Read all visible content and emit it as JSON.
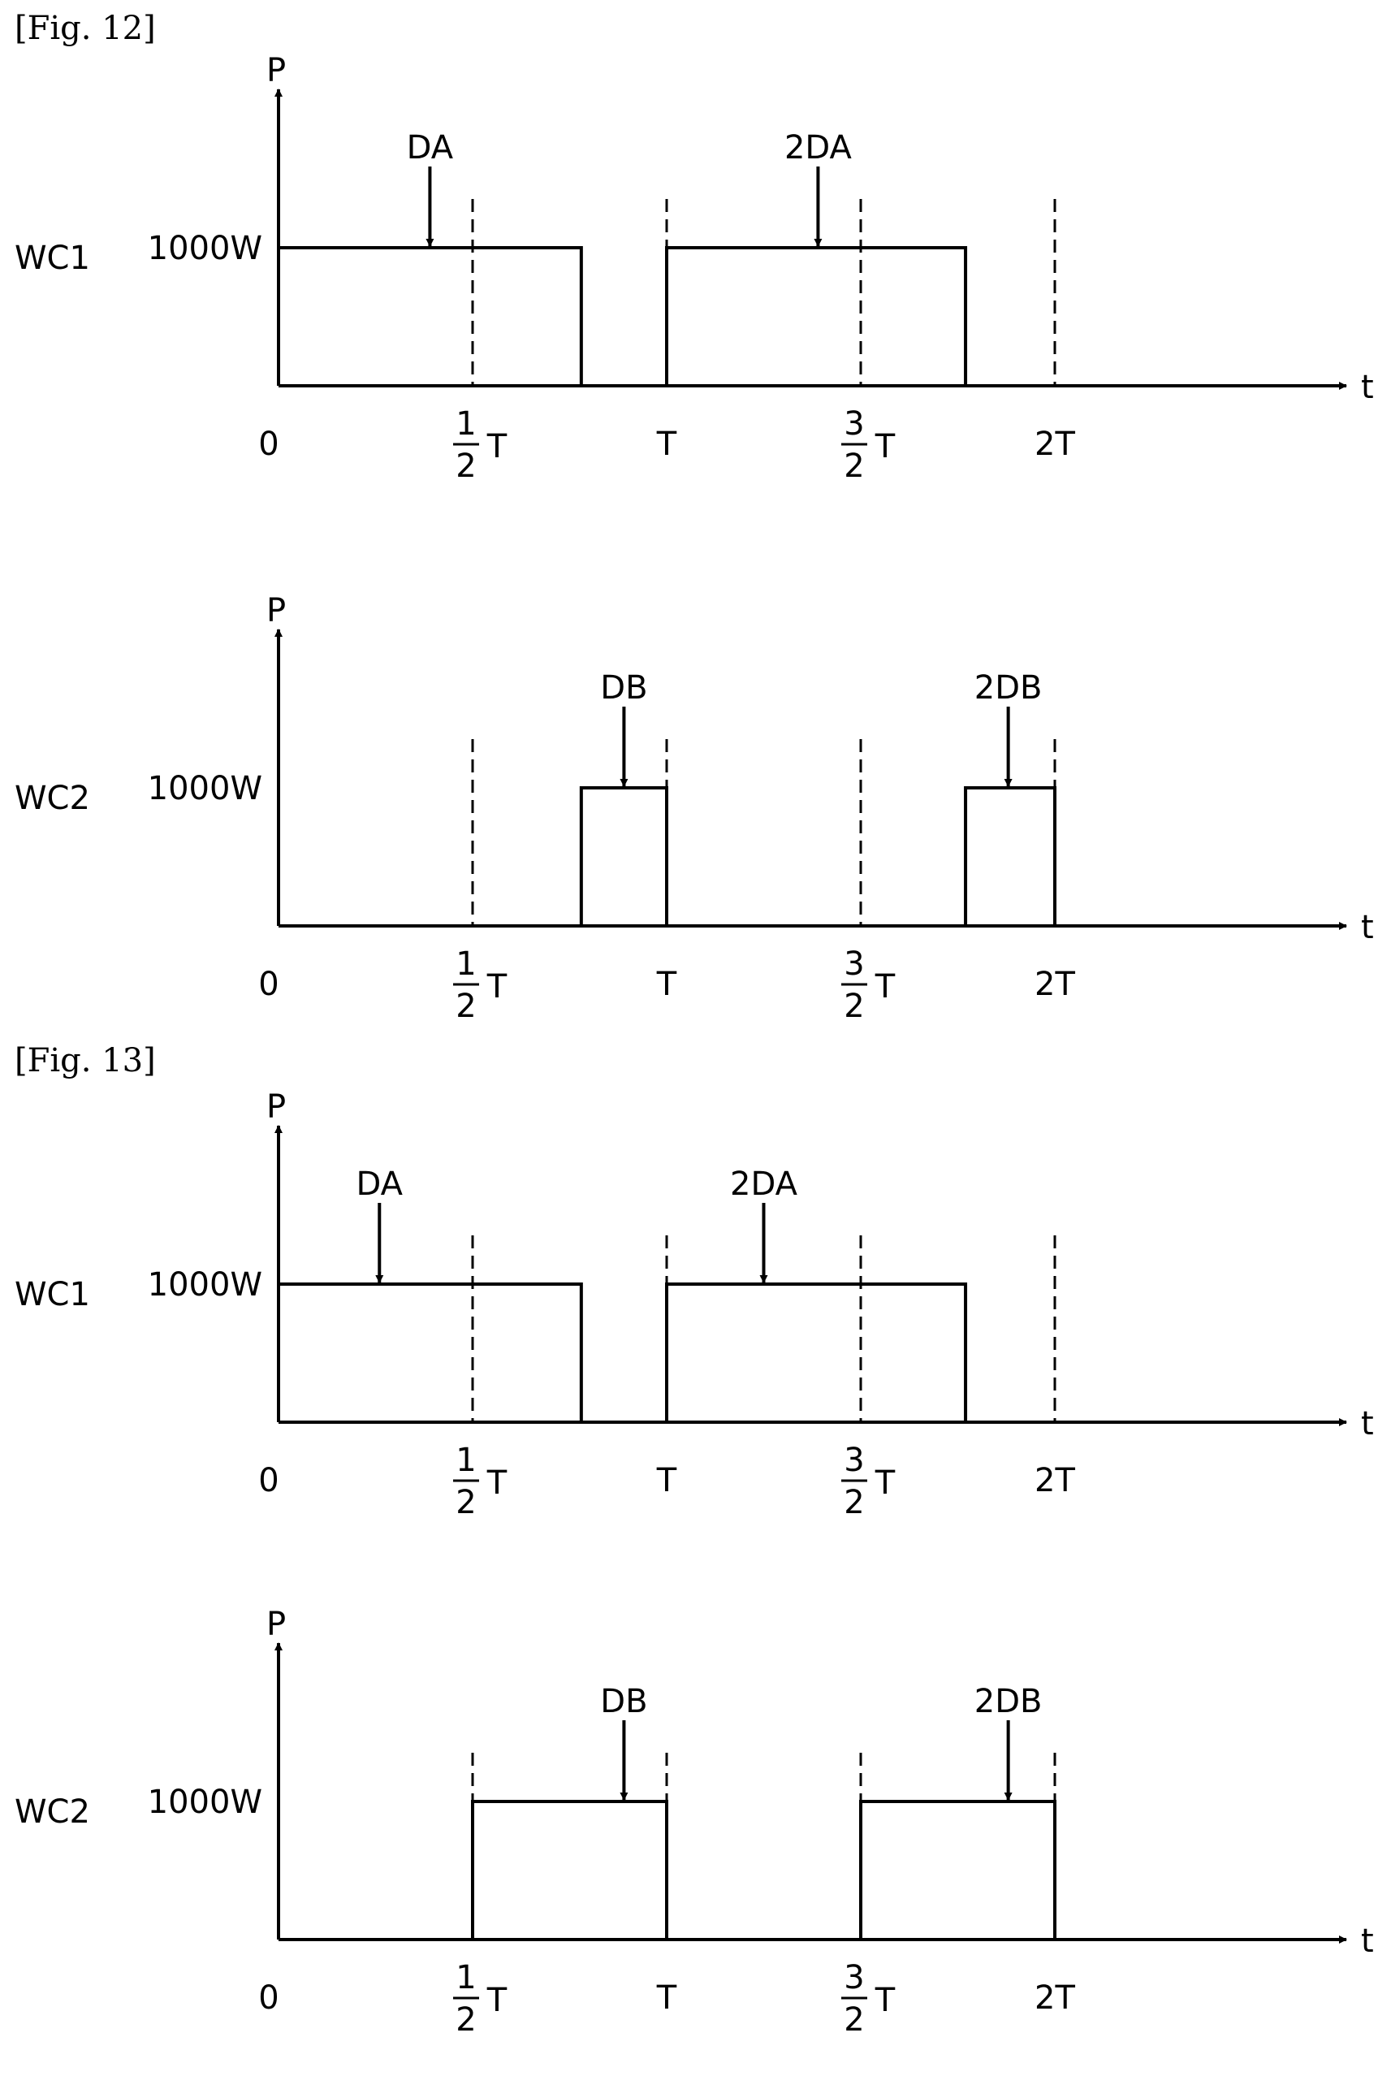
{
  "figures": [
    {
      "label": "[Fig. 12]",
      "charts": [
        {
          "type": "line",
          "row_label": "WC1",
          "ylabel": "P",
          "xlabel": "t",
          "level_label": "1000W",
          "level": 1000,
          "x_ticks": [
            {
              "value": 0,
              "label": "0"
            },
            {
              "value": 0.5,
              "num": "1",
              "den": "2",
              "suffix": "T"
            },
            {
              "value": 1,
              "label": "T"
            },
            {
              "value": 1.5,
              "num": "3",
              "den": "2",
              "suffix": "T"
            },
            {
              "value": 2,
              "label": "2T"
            }
          ],
          "pulses": [
            [
              0,
              0.78
            ],
            [
              1,
              1.77
            ]
          ],
          "markers": [
            {
              "label": "DA",
              "x": 0.39
            },
            {
              "label": "2DA",
              "x": 1.39
            }
          ],
          "dashed_x": [
            0.5,
            1,
            1.5,
            2
          ]
        },
        {
          "type": "line",
          "row_label": "WC2",
          "ylabel": "P",
          "xlabel": "t",
          "level_label": "1000W",
          "level": 1000,
          "x_ticks": [
            {
              "value": 0,
              "label": "0"
            },
            {
              "value": 0.5,
              "num": "1",
              "den": "2",
              "suffix": "T"
            },
            {
              "value": 1,
              "label": "T"
            },
            {
              "value": 1.5,
              "num": "3",
              "den": "2",
              "suffix": "T"
            },
            {
              "value": 2,
              "label": "2T"
            }
          ],
          "pulses": [
            [
              0.78,
              1
            ],
            [
              1.77,
              2
            ]
          ],
          "markers": [
            {
              "label": "DB",
              "x": 0.89
            },
            {
              "label": "2DB",
              "x": 1.88
            }
          ],
          "dashed_x": [
            0.5,
            1,
            1.5,
            2
          ]
        }
      ]
    },
    {
      "label": "[Fig. 13]",
      "charts": [
        {
          "type": "line",
          "row_label": "WC1",
          "ylabel": "P",
          "xlabel": "t",
          "level_label": "1000W",
          "level": 1000,
          "x_ticks": [
            {
              "value": 0,
              "label": "0"
            },
            {
              "value": 0.5,
              "num": "1",
              "den": "2",
              "suffix": "T"
            },
            {
              "value": 1,
              "label": "T"
            },
            {
              "value": 1.5,
              "num": "3",
              "den": "2",
              "suffix": "T"
            },
            {
              "value": 2,
              "label": "2T"
            }
          ],
          "pulses": [
            [
              0,
              0.78
            ],
            [
              1,
              1.77
            ]
          ],
          "markers": [
            {
              "label": "DA",
              "x": 0.26
            },
            {
              "label": "2DA",
              "x": 1.25
            }
          ],
          "dashed_x": [
            0.5,
            1,
            1.5,
            2
          ]
        },
        {
          "type": "line",
          "row_label": "WC2",
          "ylabel": "P",
          "xlabel": "t",
          "level_label": "1000W",
          "level": 1000,
          "x_ticks": [
            {
              "value": 0,
              "label": "0"
            },
            {
              "value": 0.5,
              "num": "1",
              "den": "2",
              "suffix": "T"
            },
            {
              "value": 1,
              "label": "T"
            },
            {
              "value": 1.5,
              "num": "3",
              "den": "2",
              "suffix": "T"
            },
            {
              "value": 2,
              "label": "2T"
            }
          ],
          "pulses": [
            [
              0.5,
              1
            ],
            [
              1.5,
              2
            ]
          ],
          "markers": [
            {
              "label": "DB",
              "x": 0.89
            },
            {
              "label": "2DB",
              "x": 1.88
            }
          ],
          "dashed_x": [
            0.5,
            1,
            1.5,
            2
          ]
        }
      ]
    }
  ]
}
